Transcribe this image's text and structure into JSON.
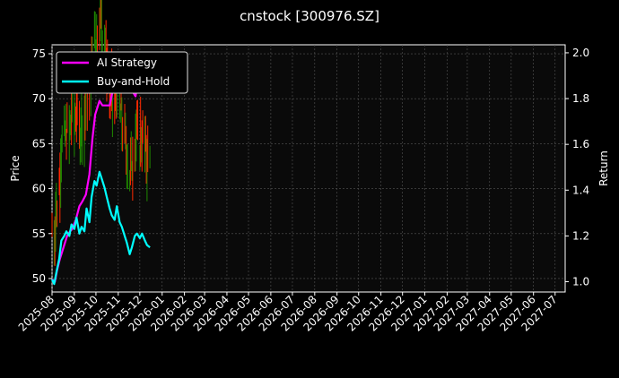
{
  "chart_data": {
    "type": "line",
    "title": "cnstock [300976.SZ]",
    "ylabel_left": "Price",
    "ylabel_right": "Return",
    "xlim": [
      "2025-08-01",
      "2027-07-15"
    ],
    "ylim_left": [
      48.5,
      76
    ],
    "ylim_right": [
      0.955,
      2.035
    ],
    "grid": true,
    "legend_position": "top-left",
    "colors": {
      "background": "#000000",
      "ai_strategy": "#ff00ff",
      "buy_and_hold": "#00ffff",
      "candle_up": "#ff2a00",
      "candle_down": "#1f8a00",
      "grid": "#555555"
    },
    "x_ticks": [
      "2025-08",
      "2025-09",
      "2025-10",
      "2025-11",
      "2025-12",
      "2026-01",
      "2026-02",
      "2026-03",
      "2026-04",
      "2026-05",
      "2026-06",
      "2026-07",
      "2026-08",
      "2026-09",
      "2026-10",
      "2026-11",
      "2026-12",
      "2027-01",
      "2027-02",
      "2027-03",
      "2027-04",
      "2027-05",
      "2027-06",
      "2027-07"
    ],
    "y_ticks_left": [
      "50",
      "55",
      "60",
      "65",
      "70",
      "75"
    ],
    "y_ticks_right": [
      "1.0",
      "1.2",
      "1.4",
      "1.6",
      "1.8",
      "2.0"
    ],
    "series": [
      {
        "name": "AI Strategy",
        "axis": "right",
        "x": [
          "2025-08-01",
          "2025-08-05",
          "2025-08-08",
          "2025-08-12",
          "2025-08-15",
          "2025-08-19",
          "2025-08-22",
          "2025-08-26",
          "2025-08-29",
          "2025-09-03",
          "2025-09-08",
          "2025-09-12",
          "2025-09-17",
          "2025-09-22",
          "2025-09-26",
          "2025-09-30",
          "2025-10-06",
          "2025-10-10",
          "2025-10-15",
          "2025-10-20",
          "2025-10-24",
          "2025-10-29",
          "2025-11-03",
          "2025-11-07",
          "2025-11-12",
          "2025-11-17",
          "2025-11-21",
          "2025-11-25",
          "2025-11-28"
        ],
        "values": [
          1.01,
          1.0,
          1.05,
          1.1,
          1.13,
          1.17,
          1.2,
          1.22,
          1.23,
          1.27,
          1.33,
          1.35,
          1.38,
          1.47,
          1.62,
          1.73,
          1.79,
          1.77,
          1.77,
          1.77,
          1.83,
          1.86,
          1.9,
          1.95,
          1.95,
          1.92,
          1.83,
          1.81,
          1.87
        ]
      },
      {
        "name": "Buy-and-Hold",
        "axis": "right",
        "x": [
          "2025-08-01",
          "2025-08-04",
          "2025-08-07",
          "2025-08-11",
          "2025-08-14",
          "2025-08-18",
          "2025-08-21",
          "2025-08-25",
          "2025-08-28",
          "2025-09-01",
          "2025-09-04",
          "2025-09-08",
          "2025-09-11",
          "2025-09-15",
          "2025-09-18",
          "2025-09-22",
          "2025-09-25",
          "2025-09-29",
          "2025-10-02",
          "2025-10-06",
          "2025-10-09",
          "2025-10-13",
          "2025-10-16",
          "2025-10-20",
          "2025-10-23",
          "2025-10-27",
          "2025-10-30",
          "2025-11-03",
          "2025-11-06",
          "2025-11-10",
          "2025-11-13",
          "2025-11-17",
          "2025-11-20",
          "2025-11-24",
          "2025-11-27",
          "2025-12-01",
          "2025-12-04",
          "2025-12-08",
          "2025-12-11",
          "2025-12-15"
        ],
        "values": [
          1.01,
          0.99,
          1.04,
          1.1,
          1.18,
          1.2,
          1.22,
          1.2,
          1.25,
          1.23,
          1.28,
          1.21,
          1.24,
          1.22,
          1.32,
          1.26,
          1.37,
          1.44,
          1.42,
          1.48,
          1.45,
          1.41,
          1.37,
          1.32,
          1.29,
          1.27,
          1.33,
          1.26,
          1.24,
          1.2,
          1.17,
          1.12,
          1.15,
          1.2,
          1.21,
          1.19,
          1.21,
          1.18,
          1.16,
          1.15
        ]
      }
    ]
  }
}
